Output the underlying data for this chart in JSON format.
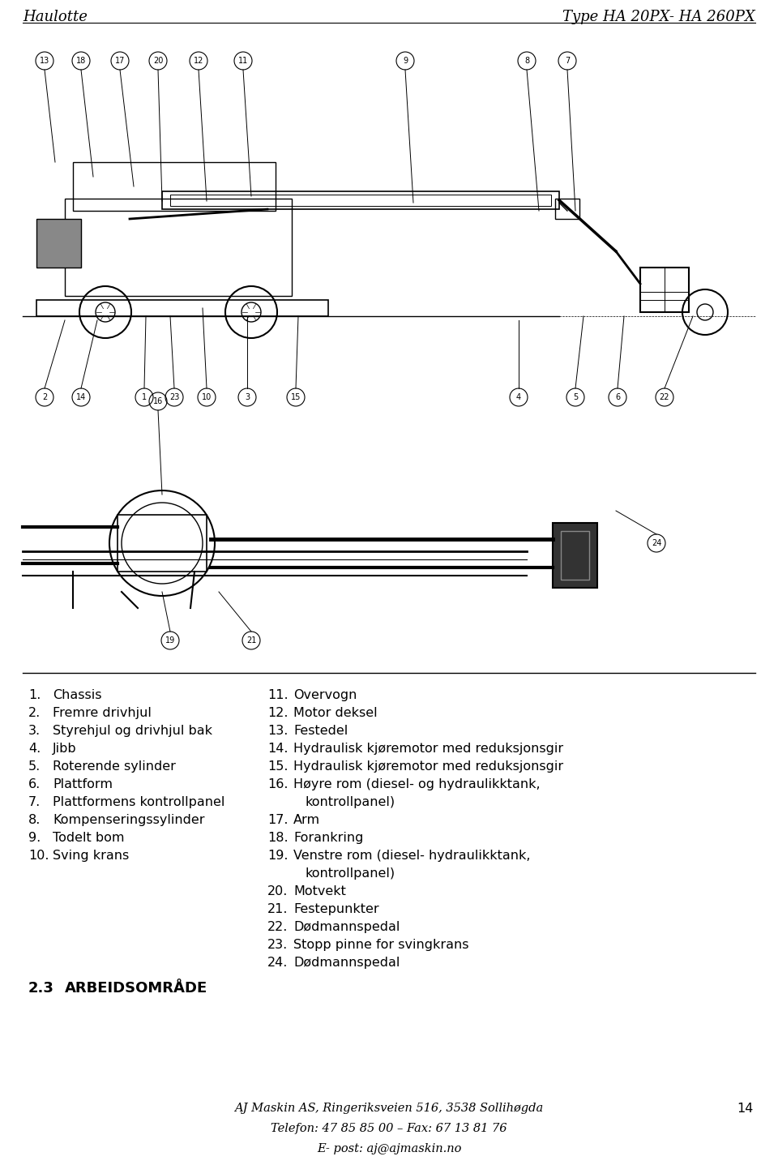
{
  "header_left": "Haulotte",
  "header_right": "Type HA 20PX- HA 260PX",
  "header_fontsize": 13,
  "header_style": "italic",
  "bg_color": "#ffffff",
  "text_color": "#000000",
  "list_left": [
    [
      "1.",
      "Chassis"
    ],
    [
      "2.",
      "Fremre drivhjul"
    ],
    [
      "3.",
      "Styrehjul og drivhjul bak"
    ],
    [
      "4.",
      "Jibb"
    ],
    [
      "5.",
      "Roterende sylinder"
    ],
    [
      "6.",
      "Plattform"
    ],
    [
      "7.",
      "Plattformens kontrollpanel"
    ],
    [
      "8.",
      "Kompenseringssylinder"
    ],
    [
      "9.",
      "Todelt bom"
    ],
    [
      "10.",
      "Sving krans"
    ]
  ],
  "list_right": [
    [
      "11.",
      "Overvogn"
    ],
    [
      "12.",
      "Motor deksel"
    ],
    [
      "13.",
      "Festedel"
    ],
    [
      "14.",
      "Hydraulisk kjøremotor med reduksjonsgir"
    ],
    [
      "15.",
      "Hydraulisk kjøremotor med reduksjonsgir"
    ],
    [
      "16.",
      "Høyre rom (diesel- og hydraulikktank,\n        kontrollpanel)"
    ],
    [
      "17.",
      "Arm"
    ],
    [
      "18.",
      "Forankring"
    ],
    [
      "19.",
      "Venstre rom (diesel- hydraulikktank,\n        kontrollpanel)"
    ],
    [
      "20.",
      "Motvekt"
    ],
    [
      "21.",
      "Festepunkter"
    ],
    [
      "22.",
      "Dødmannspedal"
    ],
    [
      "23.",
      "Stopp pinne for svingkrans"
    ],
    [
      "24.",
      "Dødmannspedal"
    ]
  ],
  "section_label": "2.3",
  "section_title": "ARBEIDSOMRÅDE",
  "footer_line1": "AJ Maskin AS, Ringeriksveien 516, 3538 Sollihøgda",
  "footer_line2": "Telefon: 47 85 85 00 – Fax: 67 13 81 76",
  "footer_line3": "E- post: aj@ajmaskin.no",
  "page_number": "14",
  "list_fontsize": 11.5,
  "footer_fontsize": 10.5
}
